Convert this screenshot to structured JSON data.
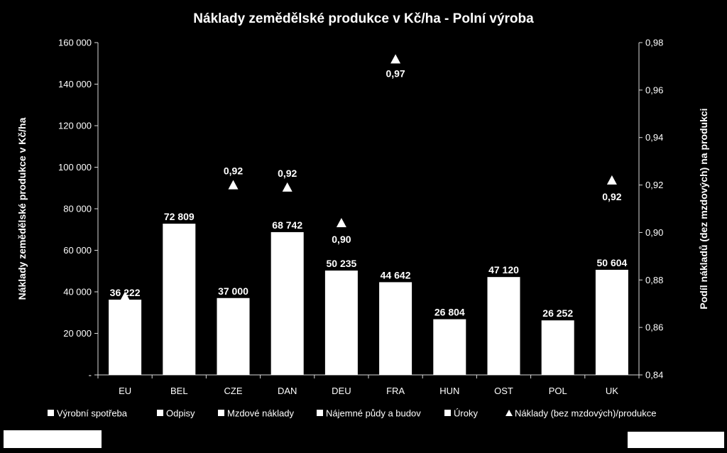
{
  "chart_data": {
    "type": "bar",
    "title": "Náklady zemědělské produkce v Kč/ha - Polní výroba",
    "ylabel": "Náklady zemědělské produkce v Kč/ha",
    "y2label": "Podíl nákladů (dez mzdových) na produkci",
    "categories": [
      "EU",
      "BEL",
      "CZE",
      "DAN",
      "DEU",
      "FRA",
      "HUN",
      "OST",
      "POL",
      "UK"
    ],
    "ylim": [
      0,
      160000
    ],
    "y_ticks": [
      0,
      20000,
      40000,
      60000,
      80000,
      100000,
      120000,
      140000,
      160000
    ],
    "y_tick_labels": [
      "-",
      "20 000",
      "40 000",
      "60 000",
      "80 000",
      "100 000",
      "120 000",
      "140 000",
      "160 000"
    ],
    "y2lim": [
      0.84,
      0.98
    ],
    "y2_ticks": [
      0.84,
      0.86,
      0.88,
      0.9,
      0.92,
      0.94,
      0.96,
      0.98
    ],
    "y2_tick_labels": [
      "0,84",
      "0,86",
      "0,88",
      "0,90",
      "0,92",
      "0,94",
      "0,96",
      "0,98"
    ],
    "bar_series": {
      "name": "Výrobní spotřeba",
      "values": [
        36222,
        72809,
        37000,
        68742,
        50235,
        44642,
        26804,
        47120,
        26252,
        50604
      ],
      "labels": [
        "36 222",
        "72 809",
        "37 000",
        "68 742",
        "50 235",
        "44 642",
        "26 804",
        "47 120",
        "26 252",
        "50 604"
      ]
    },
    "ratio_series": {
      "name": "Náklady (bez mzdových)/produkce",
      "values": [
        0.873,
        null,
        0.92,
        0.919,
        0.904,
        0.973,
        null,
        null,
        null,
        0.922
      ],
      "labels": [
        null,
        null,
        "0,92",
        "0,92",
        "0,90",
        "0,97",
        null,
        null,
        null,
        "0,92"
      ]
    },
    "legend": [
      {
        "name": "Výrobní spotřeba",
        "marker": "square"
      },
      {
        "name": "Odpisy",
        "marker": "square"
      },
      {
        "name": "Mzdové náklady",
        "marker": "square"
      },
      {
        "name": "Nájemné půdy a budov",
        "marker": "square"
      },
      {
        "name": "Úroky",
        "marker": "square"
      },
      {
        "name": "Náklady (bez mzdových)/produkce",
        "marker": "triangle"
      }
    ],
    "legend_position": "bottom",
    "grid": false,
    "colors": {
      "background": "#000000",
      "bars": "#ffffff",
      "text": "#ffffff",
      "axis": "#d9d9d9"
    }
  }
}
